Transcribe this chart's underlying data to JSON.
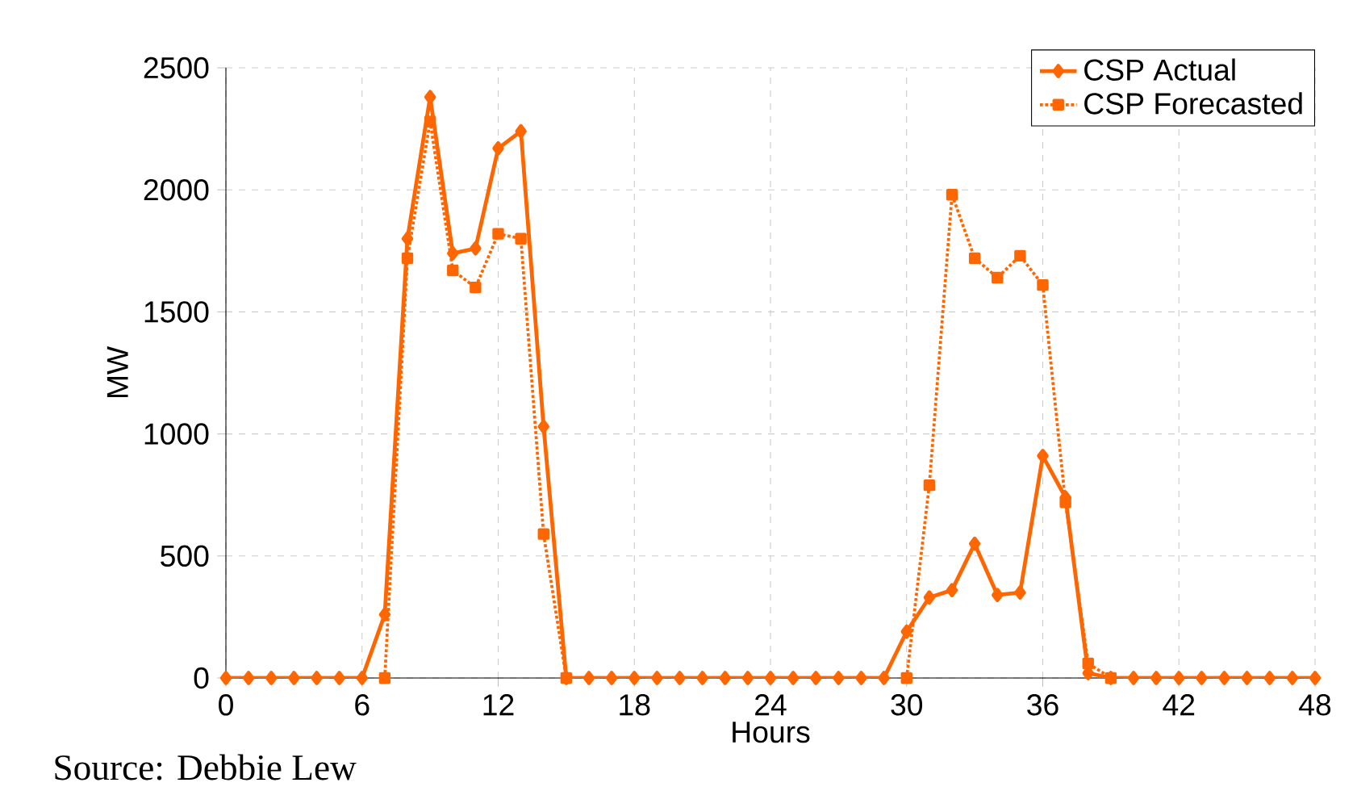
{
  "chart_data": {
    "type": "line",
    "xlabel": "Hours",
    "ylabel": "MW",
    "x": [
      0,
      1,
      2,
      3,
      4,
      5,
      6,
      7,
      8,
      9,
      10,
      11,
      12,
      13,
      14,
      15,
      16,
      17,
      18,
      19,
      20,
      21,
      22,
      23,
      24,
      25,
      26,
      27,
      28,
      29,
      30,
      31,
      32,
      33,
      34,
      35,
      36,
      37,
      38,
      39,
      40,
      41,
      42,
      43,
      44,
      45,
      46,
      47,
      48
    ],
    "series": [
      {
        "name": "CSP Actual",
        "color": "#ff6600",
        "marker": "diamond",
        "line_style": "solid",
        "values": [
          0,
          0,
          0,
          0,
          0,
          0,
          0,
          260,
          1800,
          2380,
          1740,
          1760,
          2170,
          2240,
          1030,
          0,
          0,
          0,
          0,
          0,
          0,
          0,
          0,
          0,
          0,
          0,
          0,
          0,
          0,
          0,
          190,
          330,
          360,
          550,
          340,
          350,
          910,
          740,
          20,
          0,
          0,
          0,
          0,
          0,
          0,
          0,
          0,
          0,
          0
        ]
      },
      {
        "name": "CSP Forecasted",
        "color": "#ff6600",
        "marker": "square",
        "line_style": "dotted",
        "values": [
          null,
          null,
          null,
          null,
          null,
          null,
          null,
          0,
          1720,
          2280,
          1670,
          1600,
          1820,
          1800,
          590,
          0,
          null,
          null,
          null,
          null,
          null,
          null,
          null,
          null,
          null,
          null,
          null,
          null,
          null,
          null,
          0,
          790,
          1980,
          1720,
          1640,
          1730,
          1610,
          720,
          60,
          0,
          null,
          null,
          null,
          null,
          null,
          null,
          null,
          null,
          null
        ]
      }
    ],
    "xlim": [
      0,
      48
    ],
    "xticks": [
      0,
      6,
      12,
      18,
      24,
      30,
      36,
      42,
      48
    ],
    "ylim": [
      0,
      2500
    ],
    "yticks": [
      0,
      500,
      1000,
      1500,
      2000,
      2500
    ],
    "grid": true,
    "legend": "top right",
    "annotations": [
      "Source: Debbie Lew"
    ]
  }
}
